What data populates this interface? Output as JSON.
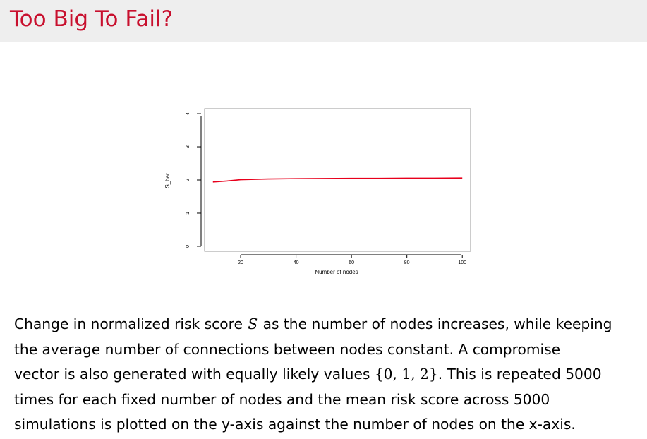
{
  "slide": {
    "title": "Too Big To Fail?"
  },
  "colors": {
    "title": "#c8102e",
    "header_background": "#eeeeee",
    "line": "#e8001c"
  },
  "chart_data": {
    "type": "line",
    "xlabel": "Number of nodes",
    "ylabel": "S_bar",
    "xlim": [
      7,
      103
    ],
    "ylim": [
      -0.15,
      4.15
    ],
    "xticks": [
      20,
      40,
      60,
      80,
      100
    ],
    "yticks": [
      0,
      1,
      2,
      3,
      4
    ],
    "grid": false,
    "series": [
      {
        "color": "#e8001c",
        "x": [
          10,
          15,
          20,
          25,
          30,
          40,
          50,
          60,
          70,
          80,
          90,
          100
        ],
        "y": [
          1.94,
          1.97,
          2.01,
          2.02,
          2.03,
          2.04,
          2.045,
          2.05,
          2.05,
          2.055,
          2.055,
          2.06
        ]
      }
    ]
  },
  "caption": {
    "line1_a": "Change in normalized risk score ",
    "symbol": "S",
    "line1_b": " as the number of nodes increases, while keeping",
    "line2": "the average number of connections between nodes constant.  A compromise",
    "line3_a": "vector is also generated with equally likely values ",
    "set": "{0, 1, 2}",
    "line3_b": ".  This is repeated 5000",
    "line4": "times for each fixed number of nodes and the mean risk score across 5000",
    "line5": "simulations is plotted on the y-axis against the number of nodes on the x-axis."
  }
}
